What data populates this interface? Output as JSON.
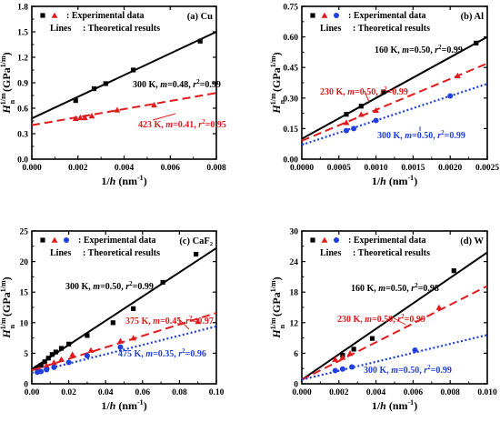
{
  "chart_data": [
    {
      "type": "scatter",
      "panel_label": "(a) Cu",
      "xlabel": "1/h (nm⁻¹)",
      "ylabel": "H_n^{1/m} (GPa^{1/m})",
      "xlim": [
        0,
        0.008
      ],
      "ylim": [
        0,
        1.8
      ],
      "xticks": [
        "0.000",
        "0.002",
        "0.004",
        "0.006",
        "0.008"
      ],
      "yticks": [
        "0.0",
        "0.3",
        "0.6",
        "0.9",
        "1.2",
        "1.5",
        "1.8"
      ],
      "legend": {
        "placement": "top-left",
        "experimental": ": Experimental data",
        "lines_word": "Lines",
        "theoretical": ": Theoretical results"
      },
      "series": [
        {
          "temp": "300 K",
          "m": "0.48",
          "r2": "0.99",
          "color": "#000000",
          "marker": "square",
          "line_style": "solid",
          "points": [
            [
              0.0019,
              0.69
            ],
            [
              0.0027,
              0.83
            ],
            [
              0.0032,
              0.89
            ],
            [
              0.0044,
              1.05
            ],
            [
              0.0073,
              1.39
            ]
          ],
          "fit": [
            [
              0,
              0.48
            ],
            [
              0.008,
              1.5
            ]
          ]
        },
        {
          "temp": "423 K",
          "m": "0.41",
          "r2": "0.95",
          "color": "#e31a1c",
          "marker": "triangle",
          "line_style": "dashed",
          "points": [
            [
              0.0019,
              0.48
            ],
            [
              0.0021,
              0.49
            ],
            [
              0.0023,
              0.49
            ],
            [
              0.0026,
              0.51
            ],
            [
              0.0037,
              0.58
            ],
            [
              0.0053,
              0.64
            ]
          ],
          "fit": [
            [
              0,
              0.4
            ],
            [
              0.008,
              0.78
            ]
          ]
        }
      ]
    },
    {
      "type": "scatter",
      "panel_label": "(b) Al",
      "xlabel": "1/h (nm⁻¹)",
      "ylabel": "H_n^{1/m} (GPa^{1/m})",
      "xlim": [
        0,
        0.0025
      ],
      "ylim": [
        0,
        0.75
      ],
      "xticks": [
        "0.0000",
        "0.0005",
        "0.0010",
        "0.0015",
        "0.0020",
        "0.0025"
      ],
      "yticks": [
        "0.00",
        "0.15",
        "0.30",
        "0.45",
        "0.60",
        "0.75"
      ],
      "legend": {
        "placement": "top-left",
        "experimental": ": Experimental data",
        "lines_word": "Lines",
        "theoretical": ": Theoretical results"
      },
      "series": [
        {
          "temp": "160 K",
          "m": "0.50",
          "r2": "0.99",
          "color": "#000000",
          "marker": "square",
          "line_style": "solid",
          "points": [
            [
              0.0006,
              0.22
            ],
            [
              0.0008,
              0.26
            ],
            [
              0.0011,
              0.33
            ],
            [
              0.00235,
              0.57
            ]
          ],
          "fit": [
            [
              0,
              0.1
            ],
            [
              0.0025,
              0.6
            ]
          ]
        },
        {
          "temp": "230 K",
          "m": "0.50",
          "r2": "0.99",
          "color": "#e31a1c",
          "marker": "triangle",
          "line_style": "dashed",
          "points": [
            [
              0.0006,
              0.18
            ],
            [
              0.0008,
              0.22
            ],
            [
              0.001,
              0.24
            ],
            [
              0.0021,
              0.41
            ]
          ],
          "fit": [
            [
              0,
              0.09
            ],
            [
              0.0025,
              0.47
            ]
          ]
        },
        {
          "temp": "300 K",
          "m": "0.50",
          "r2": "0.99",
          "color": "#1f3fe0",
          "marker": "circle",
          "line_style": "dotted",
          "points": [
            [
              0.0006,
              0.14
            ],
            [
              0.0007,
              0.15
            ],
            [
              0.001,
              0.19
            ],
            [
              0.002,
              0.31
            ]
          ],
          "fit": [
            [
              0,
              0.07
            ],
            [
              0.0025,
              0.37
            ]
          ]
        }
      ]
    },
    {
      "type": "scatter",
      "panel_label": "(c) CaF₂",
      "xlabel": "1/h (nm⁻¹)",
      "ylabel": "H_n^{1/m} (GPa^{1/m})",
      "xlim": [
        0,
        0.1
      ],
      "ylim": [
        0,
        25
      ],
      "xticks": [
        "0.00",
        "0.02",
        "0.04",
        "0.06",
        "0.08",
        "0.10"
      ],
      "yticks": [
        "0",
        "5",
        "10",
        "15",
        "20",
        "25"
      ],
      "legend": {
        "placement": "top-left",
        "experimental": ": Experimental data",
        "lines_word": "Lines",
        "theoretical": ": Theoretical results"
      },
      "series": [
        {
          "temp": "300 K",
          "m": "0.50",
          "r2": "0.99",
          "color": "#000000",
          "marker": "square",
          "line_style": "solid",
          "points": [
            [
              0.003,
              2.6
            ],
            [
              0.005,
              3.0
            ],
            [
              0.007,
              3.6
            ],
            [
              0.009,
              4.2
            ],
            [
              0.011,
              4.8
            ],
            [
              0.013,
              5.2
            ],
            [
              0.016,
              5.8
            ],
            [
              0.02,
              6.5
            ],
            [
              0.03,
              7.9
            ],
            [
              0.044,
              10.0
            ],
            [
              0.055,
              12.3
            ],
            [
              0.071,
              16.6
            ],
            [
              0.089,
              21.2
            ]
          ],
          "fit": [
            [
              0,
              2.4
            ],
            [
              0.1,
              22.2
            ]
          ]
        },
        {
          "temp": "375 K",
          "m": "0.45",
          "r2": "0.97",
          "color": "#e31a1c",
          "marker": "triangle",
          "line_style": "dashed",
          "points": [
            [
              0.004,
              2.4
            ],
            [
              0.008,
              3.0
            ],
            [
              0.012,
              3.5
            ],
            [
              0.016,
              4.0
            ],
            [
              0.022,
              4.8
            ],
            [
              0.032,
              5.5
            ],
            [
              0.048,
              7.0
            ],
            [
              0.055,
              7.5
            ],
            [
              0.09,
              10.2
            ]
          ],
          "fit": [
            [
              0,
              2.2
            ],
            [
              0.1,
              11.6
            ]
          ]
        },
        {
          "temp": "475 K",
          "m": "0.35",
          "r2": "0.96",
          "color": "#1f3fe0",
          "marker": "circle",
          "line_style": "dotted",
          "points": [
            [
              0.003,
              1.9
            ],
            [
              0.005,
              2.0
            ],
            [
              0.008,
              2.3
            ],
            [
              0.012,
              2.7
            ],
            [
              0.02,
              3.5
            ],
            [
              0.03,
              4.6
            ],
            [
              0.048,
              6.0
            ]
          ],
          "fit": [
            [
              0,
              1.8
            ],
            [
              0.1,
              9.4
            ]
          ]
        }
      ]
    },
    {
      "type": "scatter",
      "panel_label": "(d) W",
      "xlabel": "1/h (nm⁻¹)",
      "ylabel": "H_n^{1/m} (GPa^{1/m})",
      "xlim": [
        0,
        0.01
      ],
      "ylim": [
        0,
        30
      ],
      "xticks": [
        "0.000",
        "0.002",
        "0.004",
        "0.006",
        "0.008",
        "0.010"
      ],
      "yticks": [
        "0",
        "6",
        "12",
        "18",
        "24",
        "30"
      ],
      "legend": {
        "placement": "top-left",
        "experimental": ": Experimental data",
        "lines_word": "Lines",
        "theoretical": ": Theoretical results"
      },
      "series": [
        {
          "temp": "160 K",
          "m": "0.50",
          "r2": "0.98",
          "color": "#000000",
          "marker": "square",
          "line_style": "solid",
          "points": [
            [
              0.0022,
              5.6
            ],
            [
              0.0028,
              6.8
            ],
            [
              0.0038,
              8.9
            ],
            [
              0.0082,
              22.2
            ]
          ],
          "fit": [
            [
              0,
              0.8
            ],
            [
              0.01,
              25.8
            ]
          ]
        },
        {
          "temp": "230 K",
          "m": "0.50",
          "r2": "0.99",
          "color": "#e31a1c",
          "marker": "triangle",
          "line_style": "dashed",
          "points": [
            [
              0.0018,
              4.8
            ],
            [
              0.0022,
              5.2
            ],
            [
              0.0026,
              6.0
            ],
            [
              0.0074,
              15.0
            ]
          ],
          "fit": [
            [
              0,
              0.8
            ],
            [
              0.01,
              19.2
            ]
          ]
        },
        {
          "temp": "300 K",
          "m": "0.50",
          "r2": "0.99",
          "color": "#1f3fe0",
          "marker": "circle",
          "line_style": "dotted",
          "points": [
            [
              0.0018,
              2.6
            ],
            [
              0.0022,
              2.9
            ],
            [
              0.0027,
              3.3
            ],
            [
              0.0061,
              6.6
            ]
          ],
          "fit": [
            [
              0,
              0.8
            ],
            [
              0.01,
              9.6
            ]
          ]
        }
      ]
    }
  ]
}
